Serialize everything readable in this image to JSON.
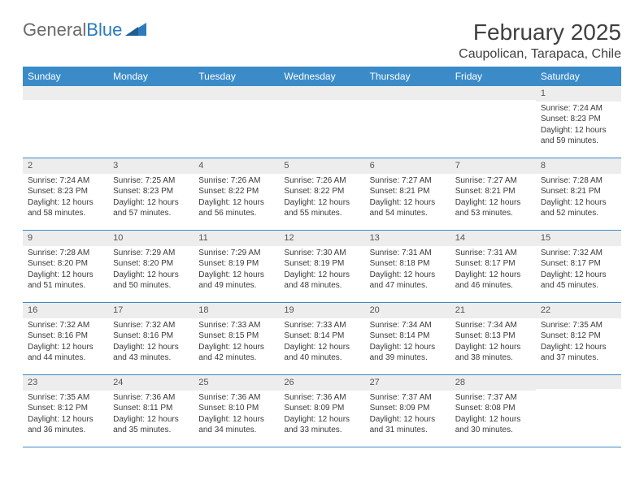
{
  "logo": {
    "part1": "General",
    "part2": "Blue"
  },
  "title": "February 2025",
  "location": "Caupolican, Tarapaca, Chile",
  "weekdays": [
    "Sunday",
    "Monday",
    "Tuesday",
    "Wednesday",
    "Thursday",
    "Friday",
    "Saturday"
  ],
  "colors": {
    "header_bg": "#3b8bc8",
    "header_text": "#ffffff",
    "daynum_bg": "#ededed",
    "border": "#3b8bc8",
    "body_text": "#3a3a3a",
    "title_text": "#404040"
  },
  "weeks": [
    [
      {
        "n": "",
        "sunrise": "",
        "sunset": "",
        "daylight": ""
      },
      {
        "n": "",
        "sunrise": "",
        "sunset": "",
        "daylight": ""
      },
      {
        "n": "",
        "sunrise": "",
        "sunset": "",
        "daylight": ""
      },
      {
        "n": "",
        "sunrise": "",
        "sunset": "",
        "daylight": ""
      },
      {
        "n": "",
        "sunrise": "",
        "sunset": "",
        "daylight": ""
      },
      {
        "n": "",
        "sunrise": "",
        "sunset": "",
        "daylight": ""
      },
      {
        "n": "1",
        "sunrise": "Sunrise: 7:24 AM",
        "sunset": "Sunset: 8:23 PM",
        "daylight": "Daylight: 12 hours and 59 minutes."
      }
    ],
    [
      {
        "n": "2",
        "sunrise": "Sunrise: 7:24 AM",
        "sunset": "Sunset: 8:23 PM",
        "daylight": "Daylight: 12 hours and 58 minutes."
      },
      {
        "n": "3",
        "sunrise": "Sunrise: 7:25 AM",
        "sunset": "Sunset: 8:23 PM",
        "daylight": "Daylight: 12 hours and 57 minutes."
      },
      {
        "n": "4",
        "sunrise": "Sunrise: 7:26 AM",
        "sunset": "Sunset: 8:22 PM",
        "daylight": "Daylight: 12 hours and 56 minutes."
      },
      {
        "n": "5",
        "sunrise": "Sunrise: 7:26 AM",
        "sunset": "Sunset: 8:22 PM",
        "daylight": "Daylight: 12 hours and 55 minutes."
      },
      {
        "n": "6",
        "sunrise": "Sunrise: 7:27 AM",
        "sunset": "Sunset: 8:21 PM",
        "daylight": "Daylight: 12 hours and 54 minutes."
      },
      {
        "n": "7",
        "sunrise": "Sunrise: 7:27 AM",
        "sunset": "Sunset: 8:21 PM",
        "daylight": "Daylight: 12 hours and 53 minutes."
      },
      {
        "n": "8",
        "sunrise": "Sunrise: 7:28 AM",
        "sunset": "Sunset: 8:21 PM",
        "daylight": "Daylight: 12 hours and 52 minutes."
      }
    ],
    [
      {
        "n": "9",
        "sunrise": "Sunrise: 7:28 AM",
        "sunset": "Sunset: 8:20 PM",
        "daylight": "Daylight: 12 hours and 51 minutes."
      },
      {
        "n": "10",
        "sunrise": "Sunrise: 7:29 AM",
        "sunset": "Sunset: 8:20 PM",
        "daylight": "Daylight: 12 hours and 50 minutes."
      },
      {
        "n": "11",
        "sunrise": "Sunrise: 7:29 AM",
        "sunset": "Sunset: 8:19 PM",
        "daylight": "Daylight: 12 hours and 49 minutes."
      },
      {
        "n": "12",
        "sunrise": "Sunrise: 7:30 AM",
        "sunset": "Sunset: 8:19 PM",
        "daylight": "Daylight: 12 hours and 48 minutes."
      },
      {
        "n": "13",
        "sunrise": "Sunrise: 7:31 AM",
        "sunset": "Sunset: 8:18 PM",
        "daylight": "Daylight: 12 hours and 47 minutes."
      },
      {
        "n": "14",
        "sunrise": "Sunrise: 7:31 AM",
        "sunset": "Sunset: 8:17 PM",
        "daylight": "Daylight: 12 hours and 46 minutes."
      },
      {
        "n": "15",
        "sunrise": "Sunrise: 7:32 AM",
        "sunset": "Sunset: 8:17 PM",
        "daylight": "Daylight: 12 hours and 45 minutes."
      }
    ],
    [
      {
        "n": "16",
        "sunrise": "Sunrise: 7:32 AM",
        "sunset": "Sunset: 8:16 PM",
        "daylight": "Daylight: 12 hours and 44 minutes."
      },
      {
        "n": "17",
        "sunrise": "Sunrise: 7:32 AM",
        "sunset": "Sunset: 8:16 PM",
        "daylight": "Daylight: 12 hours and 43 minutes."
      },
      {
        "n": "18",
        "sunrise": "Sunrise: 7:33 AM",
        "sunset": "Sunset: 8:15 PM",
        "daylight": "Daylight: 12 hours and 42 minutes."
      },
      {
        "n": "19",
        "sunrise": "Sunrise: 7:33 AM",
        "sunset": "Sunset: 8:14 PM",
        "daylight": "Daylight: 12 hours and 40 minutes."
      },
      {
        "n": "20",
        "sunrise": "Sunrise: 7:34 AM",
        "sunset": "Sunset: 8:14 PM",
        "daylight": "Daylight: 12 hours and 39 minutes."
      },
      {
        "n": "21",
        "sunrise": "Sunrise: 7:34 AM",
        "sunset": "Sunset: 8:13 PM",
        "daylight": "Daylight: 12 hours and 38 minutes."
      },
      {
        "n": "22",
        "sunrise": "Sunrise: 7:35 AM",
        "sunset": "Sunset: 8:12 PM",
        "daylight": "Daylight: 12 hours and 37 minutes."
      }
    ],
    [
      {
        "n": "23",
        "sunrise": "Sunrise: 7:35 AM",
        "sunset": "Sunset: 8:12 PM",
        "daylight": "Daylight: 12 hours and 36 minutes."
      },
      {
        "n": "24",
        "sunrise": "Sunrise: 7:36 AM",
        "sunset": "Sunset: 8:11 PM",
        "daylight": "Daylight: 12 hours and 35 minutes."
      },
      {
        "n": "25",
        "sunrise": "Sunrise: 7:36 AM",
        "sunset": "Sunset: 8:10 PM",
        "daylight": "Daylight: 12 hours and 34 minutes."
      },
      {
        "n": "26",
        "sunrise": "Sunrise: 7:36 AM",
        "sunset": "Sunset: 8:09 PM",
        "daylight": "Daylight: 12 hours and 33 minutes."
      },
      {
        "n": "27",
        "sunrise": "Sunrise: 7:37 AM",
        "sunset": "Sunset: 8:09 PM",
        "daylight": "Daylight: 12 hours and 31 minutes."
      },
      {
        "n": "28",
        "sunrise": "Sunrise: 7:37 AM",
        "sunset": "Sunset: 8:08 PM",
        "daylight": "Daylight: 12 hours and 30 minutes."
      },
      {
        "n": "",
        "sunrise": "",
        "sunset": "",
        "daylight": ""
      }
    ]
  ]
}
